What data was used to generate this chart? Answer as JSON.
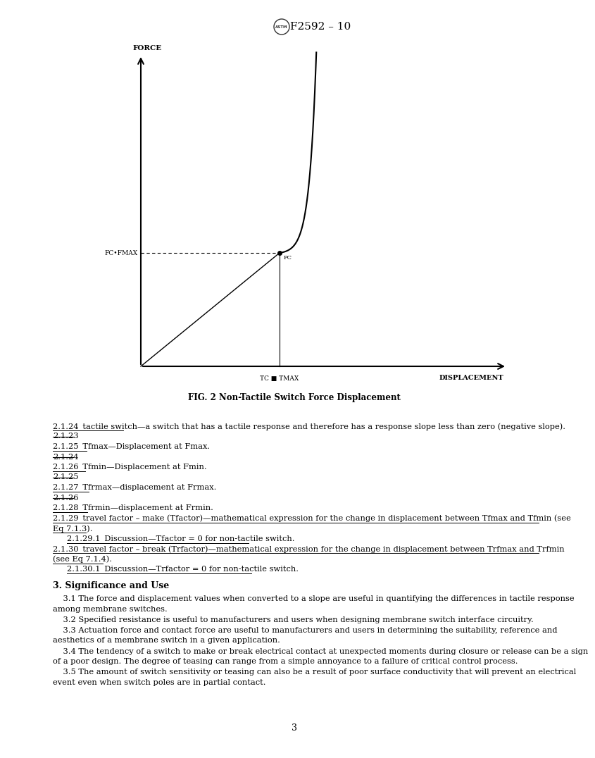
{
  "title": "F2592 – 10",
  "fig_caption": "FIG. 2 Non-Tactile Switch Force Displacement",
  "y_label": "FORCE",
  "x_label": "DISPLACEMENT",
  "fc_label": "FC•FMAX",
  "tc_label": "TC ■ TMAX",
  "pc_label": "PC",
  "page_number": "3",
  "background_color": "#ffffff",
  "text_color": "#000000",
  "blue_bar_color": "#1f3864",
  "section3_header": "3. Significance and Use",
  "section3_lines": [
    "3.1 The force and displacement values when converted to a slope are useful in quantifying the differences in tactile response among membrane switches.",
    "3.2 Specified resistance is useful to manufacturers and users when designing membrane switch interface circuitry.",
    "3.3 Actuation force and contact force are useful to manufacturers and users in determining the suitability, reference and aesthetics of a membrane switch in a given application.",
    "3.4 The tendency of a switch to make or break electrical contact at unexpected moments during closure or release can be a sign of a poor design. The degree of teasing can range from a simple annoyance to a failure of critical control process.",
    "3.5 The amount of switch sensitivity or teasing can also be a result of poor surface conductivity that will prevent an electrical event even when switch poles are in partial contact."
  ]
}
